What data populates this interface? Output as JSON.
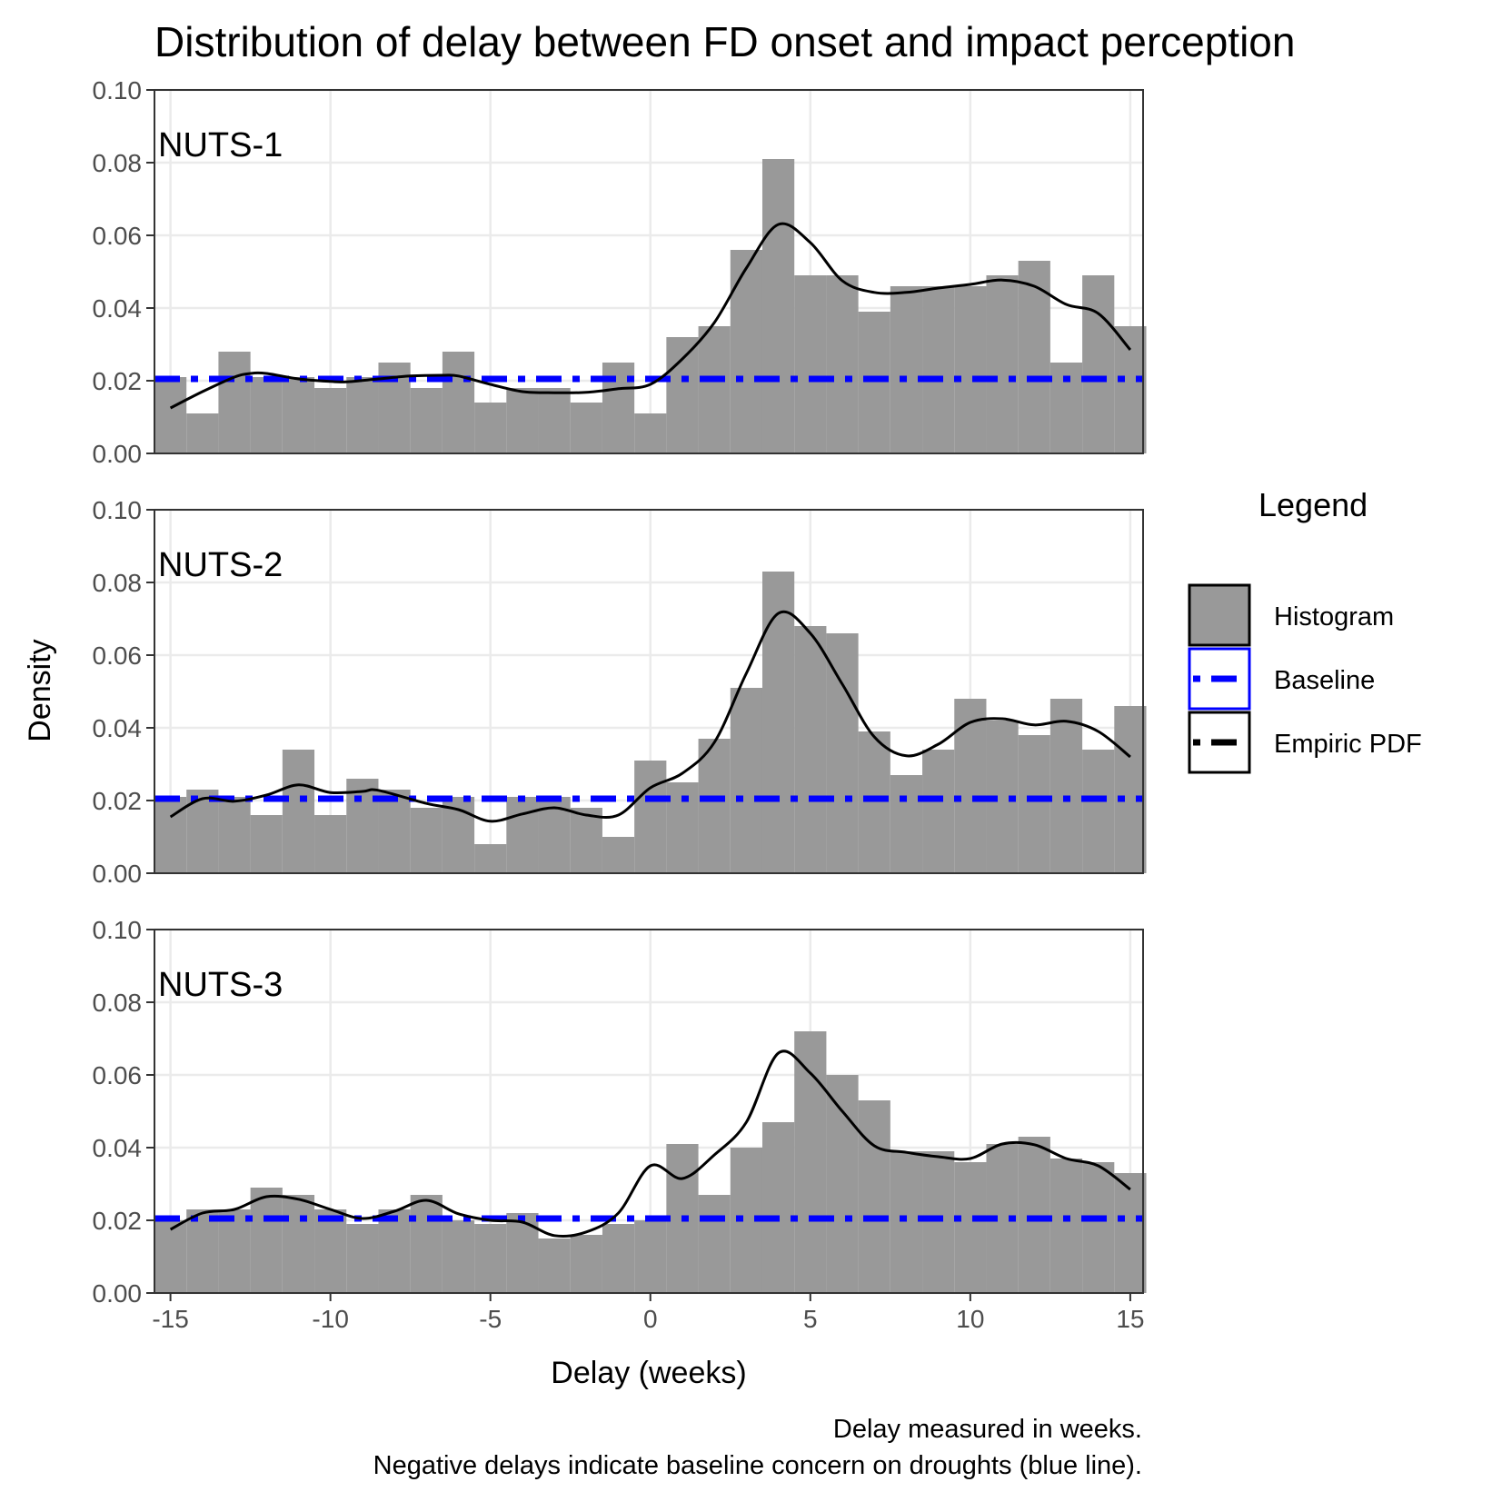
{
  "chart_data": {
    "type": "bar",
    "title": "Distribution of delay between FD onset and impact perception",
    "xlabel": "Delay (weeks)",
    "ylabel": "Density",
    "xlim": [
      -15.5,
      15.4
    ],
    "ylim": [
      0,
      0.1
    ],
    "x_ticks": [
      "-15",
      "-10",
      "-5",
      "0",
      "5",
      "10",
      "15"
    ],
    "y_ticks": [
      "0.00",
      "0.02",
      "0.04",
      "0.06",
      "0.08",
      "0.10"
    ],
    "bin_edges": [
      -15.5,
      -14.5,
      -13.5,
      -12.5,
      -11.5,
      -10.5,
      -9.5,
      -8.5,
      -7.5,
      -6.5,
      -5.5,
      -4.5,
      -3.5,
      -2.5,
      -1.5,
      -0.5,
      0.5,
      1.5,
      2.5,
      3.5,
      4.5,
      5.5,
      6.5,
      7.5,
      8.5,
      9.5,
      10.5,
      11.5,
      12.5,
      13.5,
      14.5,
      15.5
    ],
    "baseline": 0.0205,
    "grid": true,
    "legend_position": "right",
    "panels": [
      {
        "label": "NUTS-1",
        "histogram": [
          0.021,
          0.011,
          0.028,
          0.021,
          0.021,
          0.018,
          0.021,
          0.025,
          0.018,
          0.028,
          0.014,
          0.018,
          0.018,
          0.014,
          0.025,
          0.011,
          0.032,
          0.035,
          0.056,
          0.081,
          0.049,
          0.049,
          0.039,
          0.046,
          0.046,
          0.046,
          0.049,
          0.053,
          0.025,
          0.049,
          0.035
        ],
        "pdf": [
          [
            -15,
            0.0125
          ],
          [
            -14,
            0.017
          ],
          [
            -13,
            0.021
          ],
          [
            -12.5,
            0.022
          ],
          [
            -12,
            0.022
          ],
          [
            -11,
            0.0205
          ],
          [
            -10,
            0.0198
          ],
          [
            -9.5,
            0.0197
          ],
          [
            -8.5,
            0.0205
          ],
          [
            -7.5,
            0.0213
          ],
          [
            -6.5,
            0.0215
          ],
          [
            -6,
            0.0213
          ],
          [
            -5,
            0.019
          ],
          [
            -4,
            0.017
          ],
          [
            -3,
            0.0167
          ],
          [
            -2,
            0.0168
          ],
          [
            -1,
            0.0178
          ],
          [
            0,
            0.019
          ],
          [
            1,
            0.026
          ],
          [
            2,
            0.036
          ],
          [
            3,
            0.051
          ],
          [
            4,
            0.063
          ],
          [
            5,
            0.058
          ],
          [
            6,
            0.0475
          ],
          [
            7,
            0.0443
          ],
          [
            8,
            0.0443
          ],
          [
            9,
            0.0455
          ],
          [
            10,
            0.0465
          ],
          [
            11,
            0.0477
          ],
          [
            12,
            0.046
          ],
          [
            13,
            0.041
          ],
          [
            14,
            0.0385
          ],
          [
            15,
            0.0285
          ]
        ]
      },
      {
        "label": "NUTS-2",
        "histogram": [
          0.021,
          0.023,
          0.021,
          0.016,
          0.034,
          0.016,
          0.026,
          0.023,
          0.018,
          0.021,
          0.008,
          0.021,
          0.021,
          0.018,
          0.01,
          0.031,
          0.025,
          0.037,
          0.051,
          0.083,
          0.068,
          0.066,
          0.039,
          0.027,
          0.034,
          0.048,
          0.042,
          0.038,
          0.048,
          0.034,
          0.046
        ],
        "pdf": [
          [
            -15,
            0.0155
          ],
          [
            -14,
            0.0205
          ],
          [
            -13,
            0.0198
          ],
          [
            -12,
            0.0215
          ],
          [
            -11,
            0.0243
          ],
          [
            -10,
            0.0222
          ],
          [
            -9,
            0.0225
          ],
          [
            -8.5,
            0.0228
          ],
          [
            -7,
            0.0192
          ],
          [
            -6,
            0.0175
          ],
          [
            -5,
            0.0143
          ],
          [
            -4,
            0.0163
          ],
          [
            -3,
            0.018
          ],
          [
            -2,
            0.016
          ],
          [
            -1,
            0.016
          ],
          [
            0,
            0.0235
          ],
          [
            1,
            0.0275
          ],
          [
            2,
            0.036
          ],
          [
            3,
            0.055
          ],
          [
            4,
            0.0715
          ],
          [
            5,
            0.066
          ],
          [
            6,
            0.052
          ],
          [
            7,
            0.0375
          ],
          [
            8,
            0.0323
          ],
          [
            9,
            0.0355
          ],
          [
            10,
            0.0415
          ],
          [
            11,
            0.0425
          ],
          [
            12,
            0.0408
          ],
          [
            13,
            0.0418
          ],
          [
            14,
            0.039
          ],
          [
            15,
            0.032
          ]
        ]
      },
      {
        "label": "NUTS-3",
        "histogram": [
          0.02,
          0.023,
          0.023,
          0.029,
          0.027,
          0.023,
          0.019,
          0.023,
          0.027,
          0.02,
          0.019,
          0.022,
          0.015,
          0.016,
          0.019,
          0.02,
          0.041,
          0.027,
          0.04,
          0.047,
          0.072,
          0.06,
          0.053,
          0.039,
          0.039,
          0.036,
          0.041,
          0.043,
          0.037,
          0.036,
          0.033
        ],
        "pdf": [
          [
            -15,
            0.0175
          ],
          [
            -14,
            0.022
          ],
          [
            -13,
            0.023
          ],
          [
            -12,
            0.0265
          ],
          [
            -11,
            0.0258
          ],
          [
            -10,
            0.023
          ],
          [
            -9,
            0.0205
          ],
          [
            -8,
            0.0225
          ],
          [
            -7,
            0.0255
          ],
          [
            -6,
            0.0218
          ],
          [
            -5,
            0.02
          ],
          [
            -4,
            0.0195
          ],
          [
            -3,
            0.0158
          ],
          [
            -2,
            0.0168
          ],
          [
            -1,
            0.022
          ],
          [
            0,
            0.035
          ],
          [
            1,
            0.0315
          ],
          [
            2,
            0.038
          ],
          [
            3,
            0.047
          ],
          [
            4,
            0.066
          ],
          [
            5,
            0.0605
          ],
          [
            6,
            0.05
          ],
          [
            7,
            0.0405
          ],
          [
            8,
            0.0387
          ],
          [
            9,
            0.0375
          ],
          [
            10,
            0.037
          ],
          [
            11,
            0.041
          ],
          [
            12,
            0.0408
          ],
          [
            13,
            0.037
          ],
          [
            14,
            0.035
          ],
          [
            15,
            0.0285
          ]
        ]
      }
    ],
    "legend": {
      "title": "Legend",
      "items": [
        {
          "label": "Histogram",
          "key": "histogram"
        },
        {
          "label": "Baseline",
          "key": "baseline"
        },
        {
          "label": "Empiric PDF",
          "key": "pdf"
        }
      ]
    },
    "caption": [
      "Delay measured in weeks.",
      "Negative delays indicate baseline concern on droughts (blue line)."
    ],
    "colors": {
      "histogram_fill": "#999999",
      "baseline": "#0000ff",
      "pdf_line": "#000000",
      "panel_border": "#333333"
    }
  }
}
